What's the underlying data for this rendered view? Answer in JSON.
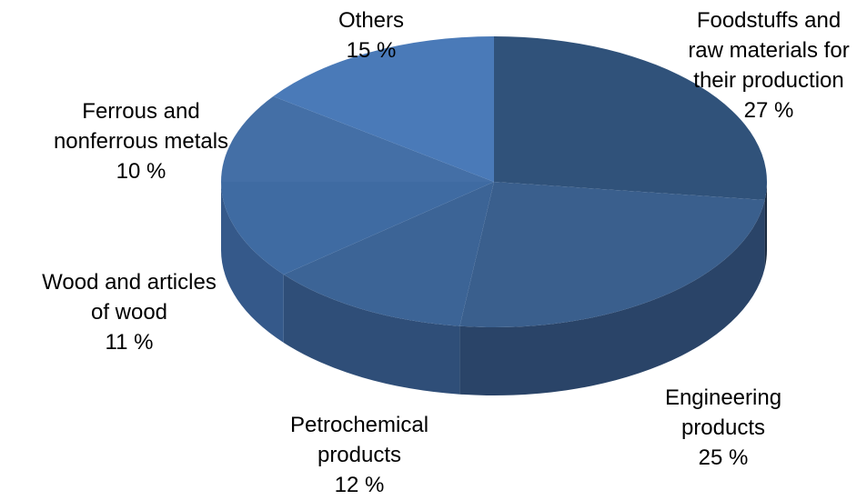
{
  "chart_data": {
    "type": "pie",
    "three_d": true,
    "title": "",
    "legend": "none",
    "categories": [
      "Foodstuffs and raw materials for their production",
      "Engineering products",
      "Petrochemical products",
      "Wood and articles of wood",
      "Ferrous and nonferrous metals",
      "Others"
    ],
    "values": [
      27,
      25,
      12,
      11,
      10,
      15
    ],
    "unit": "%",
    "labels": [
      {
        "lines": [
          "Foodstuffs and",
          "raw materials for",
          "their production"
        ],
        "value": "27 %"
      },
      {
        "lines": [
          "Engineering",
          "products"
        ],
        "value": "25 %"
      },
      {
        "lines": [
          "Petrochemical",
          "products"
        ],
        "value": "12 %"
      },
      {
        "lines": [
          "Wood and articles",
          "of wood"
        ],
        "value": "11 %"
      },
      {
        "lines": [
          "Ferrous and",
          "nonferrous metals"
        ],
        "value": "10 %"
      },
      {
        "lines": [
          "Others"
        ],
        "value": "15 %"
      }
    ],
    "colors": {
      "top": [
        "#30527a",
        "#3a5f8d",
        "#3c6496",
        "#3f6ba2",
        "#446fa6",
        "#4a7ab8"
      ],
      "side": [
        "#1b2b40",
        "#2a4468",
        "#2f4e78",
        "#35598a",
        "#3b6396",
        "#3f6aa2"
      ]
    }
  }
}
